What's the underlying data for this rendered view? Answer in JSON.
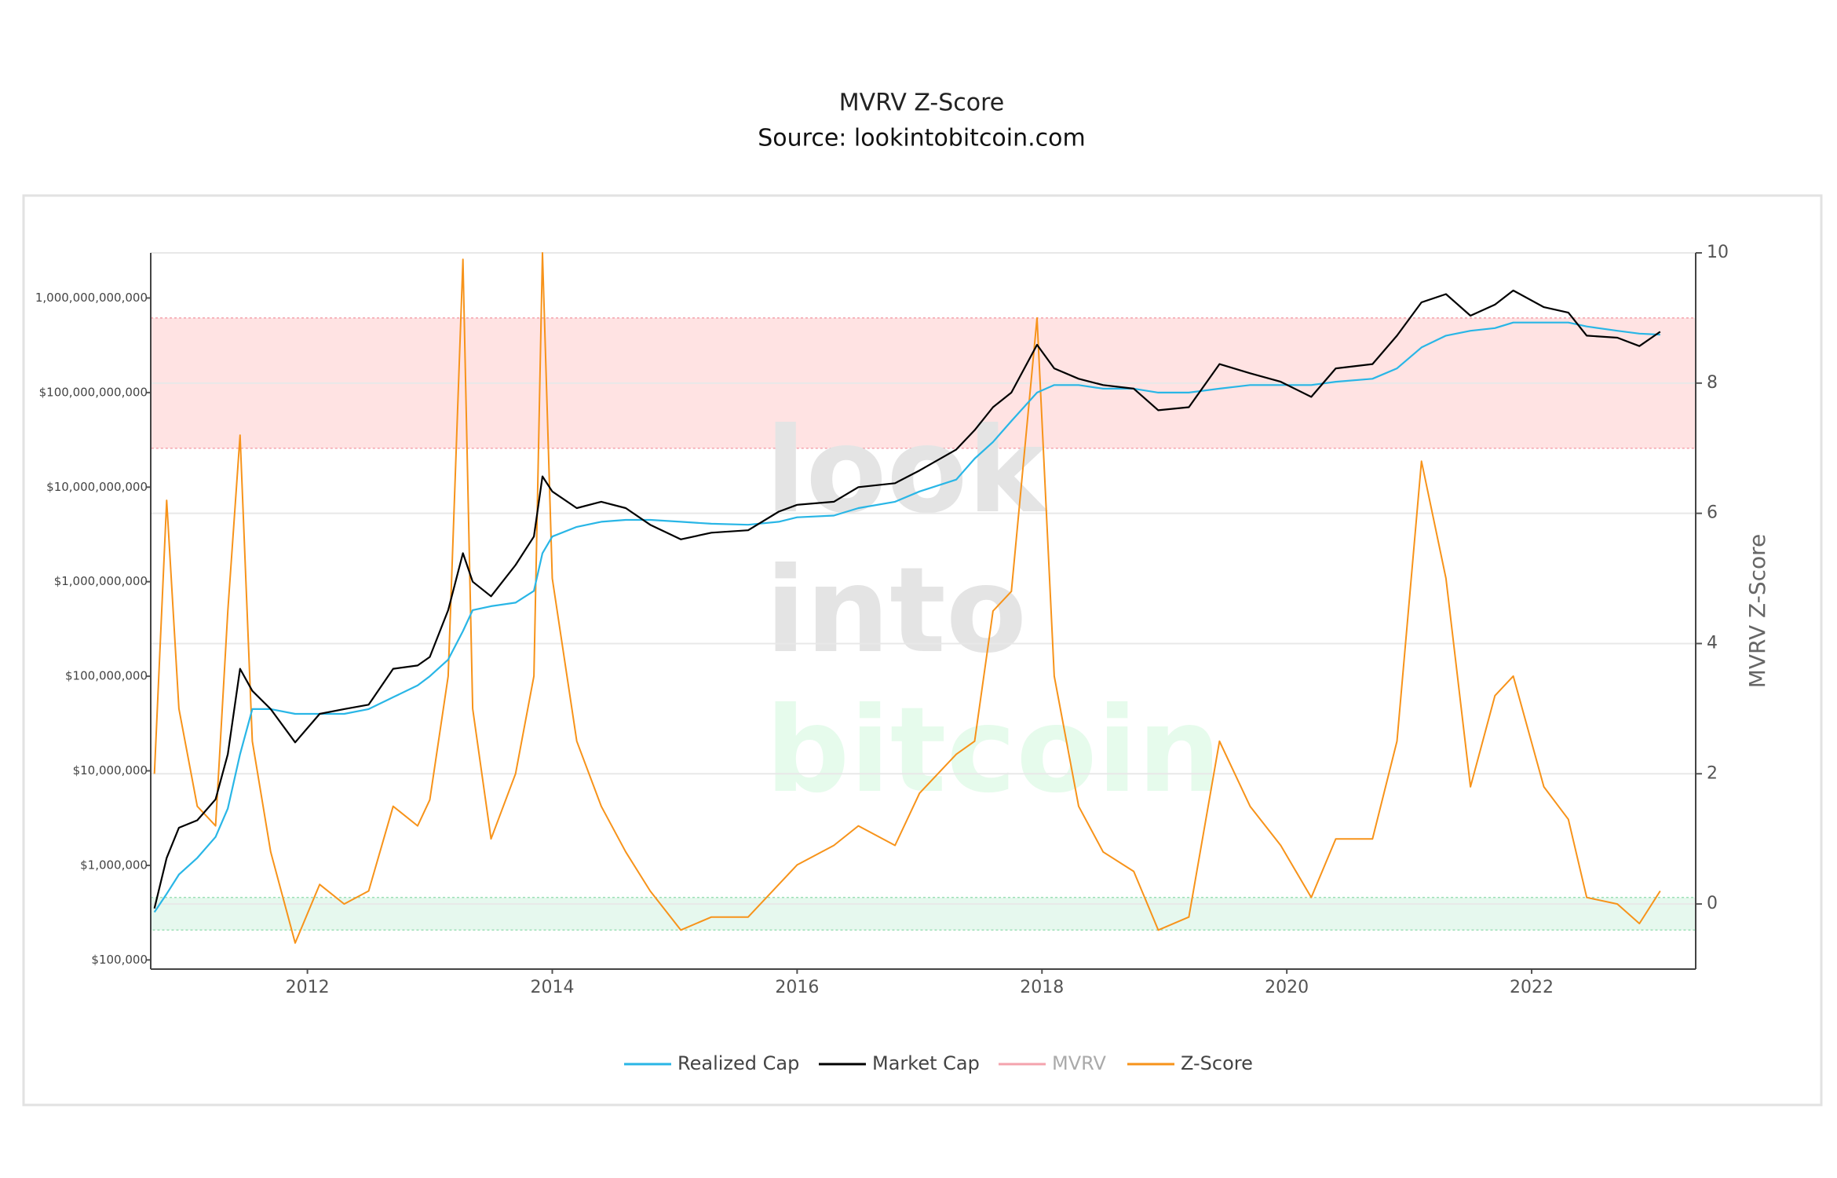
{
  "chart_data": {
    "type": "line",
    "title": "MVRV Z-Score",
    "subtitle": "Source: lookintobitcoin.com",
    "y2_label": "MVRV Z-Score",
    "watermark": [
      "look",
      "into",
      "bitcoin"
    ],
    "x": [
      2010.75,
      2010.85,
      2010.95,
      2011.1,
      2011.25,
      2011.35,
      2011.45,
      2011.55,
      2011.7,
      2011.9,
      2012.1,
      2012.3,
      2012.5,
      2012.7,
      2012.9,
      2013.0,
      2013.15,
      2013.27,
      2013.35,
      2013.5,
      2013.7,
      2013.85,
      2013.92,
      2014.0,
      2014.2,
      2014.4,
      2014.6,
      2014.8,
      2015.05,
      2015.3,
      2015.6,
      2015.85,
      2016.0,
      2016.3,
      2016.5,
      2016.8,
      2017.0,
      2017.3,
      2017.45,
      2017.6,
      2017.75,
      2017.96,
      2018.1,
      2018.3,
      2018.5,
      2018.75,
      2018.95,
      2019.2,
      2019.45,
      2019.7,
      2019.95,
      2020.2,
      2020.4,
      2020.7,
      2020.9,
      2021.1,
      2021.3,
      2021.5,
      2021.7,
      2021.85,
      2022.1,
      2022.3,
      2022.45,
      2022.7,
      2022.88,
      2023.05
    ],
    "series": [
      {
        "name": "Realized Cap",
        "color": "#29b6e6",
        "axis": "y",
        "values": [
          320000,
          500000,
          800000,
          1200000,
          2000000,
          4000000,
          15000000,
          45000000,
          45000000,
          40000000,
          40000000,
          40000000,
          45000000,
          60000000,
          80000000,
          100000000,
          150000000,
          300000000,
          500000000,
          550000000,
          600000000,
          800000000,
          2000000000,
          3000000000,
          3800000000,
          4300000000,
          4500000000,
          4500000000,
          4300000000,
          4100000000,
          4000000000,
          4300000000,
          4800000000,
          5000000000,
          6000000000,
          7000000000,
          9000000000,
          12000000000,
          20000000000,
          30000000000,
          50000000000,
          100000000000,
          120000000000,
          120000000000,
          110000000000,
          110000000000,
          100000000000,
          100000000000,
          110000000000,
          120000000000,
          120000000000,
          120000000000,
          130000000000,
          140000000000,
          180000000000,
          300000000000,
          400000000000,
          450000000000,
          480000000000,
          550000000000,
          550000000000,
          550000000000,
          500000000000,
          450000000000,
          420000000000,
          410000000000
        ]
      },
      {
        "name": "Market Cap",
        "color": "#000000",
        "axis": "y",
        "values": [
          350000,
          1200000,
          2500000,
          3000000,
          5000000,
          15000000,
          120000000,
          70000000,
          45000000,
          20000000,
          40000000,
          45000000,
          50000000,
          120000000,
          130000000,
          160000000,
          500000000,
          2000000000,
          1000000000,
          700000000,
          1500000000,
          3000000000,
          13000000000,
          9000000000,
          6000000000,
          7000000000,
          6000000000,
          4000000000,
          2800000000,
          3300000000,
          3500000000,
          5500000000,
          6500000000,
          7000000000,
          10000000000,
          11000000000,
          15000000000,
          25000000000,
          40000000000,
          70000000000,
          100000000000,
          320000000000,
          180000000000,
          140000000000,
          120000000000,
          110000000000,
          65000000000,
          70000000000,
          200000000000,
          160000000000,
          130000000000,
          90000000000,
          180000000000,
          200000000000,
          400000000000,
          900000000000,
          1100000000000,
          650000000000,
          850000000000,
          1200000000000,
          800000000000,
          700000000000,
          400000000000,
          380000000000,
          310000000000,
          440000000000
        ]
      },
      {
        "name": "MVRV",
        "color": "#f4a3ad",
        "visible": false
      },
      {
        "name": "Z-Score",
        "color": "#f7931a",
        "axis": "y2",
        "values": [
          2.0,
          6.2,
          3.0,
          1.5,
          1.2,
          4.5,
          7.2,
          2.5,
          0.8,
          -0.6,
          0.3,
          0.0,
          0.2,
          1.5,
          1.2,
          1.6,
          3.5,
          9.9,
          3.0,
          1.0,
          2.0,
          3.5,
          10,
          5.0,
          2.5,
          1.5,
          0.8,
          0.2,
          -0.4,
          -0.2,
          -0.2,
          0.3,
          0.6,
          0.9,
          1.2,
          0.9,
          1.7,
          2.3,
          2.5,
          4.5,
          4.8,
          9.0,
          3.5,
          1.5,
          0.8,
          0.5,
          -0.4,
          -0.2,
          2.5,
          1.5,
          0.9,
          0.1,
          1.0,
          1.0,
          2.5,
          6.8,
          5.0,
          1.8,
          3.2,
          3.5,
          1.8,
          1.3,
          0.1,
          0.0,
          -0.3,
          0.2
        ]
      }
    ],
    "xlim": [
      2010.72,
      2023.34
    ],
    "xticks": [
      2012,
      2014,
      2016,
      2018,
      2020,
      2022
    ],
    "ylim": [
      80000,
      3000000000000
    ],
    "log_y": true,
    "yticks": [
      {
        "value": 100000,
        "label": "$100,000"
      },
      {
        "value": 1000000,
        "label": "$1,000,000"
      },
      {
        "value": 10000000,
        "label": "$10,000,000"
      },
      {
        "value": 100000000,
        "label": "$100,000,000"
      },
      {
        "value": 1000000000,
        "label": "$1,000,000,000"
      },
      {
        "value": 10000000000,
        "label": "$10,000,000,000"
      },
      {
        "value": 100000000000,
        "label": "$100,000,000,000"
      },
      {
        "value": 1000000000000,
        "label": "1,000,000,000,000"
      }
    ],
    "y2lim": [
      -1,
      10
    ],
    "y2ticks": [
      0,
      2,
      4,
      6,
      8,
      10
    ],
    "grid": true,
    "legend": "bottom",
    "bands": [
      {
        "axis": "y2",
        "range": [
          7,
          9
        ],
        "color": "#ffe3e3",
        "border": "#f4a3ad"
      },
      {
        "axis": "y2",
        "range": [
          -0.4,
          0.1
        ],
        "color": "#e6f8ee",
        "border": "#9fe0b8"
      }
    ]
  }
}
